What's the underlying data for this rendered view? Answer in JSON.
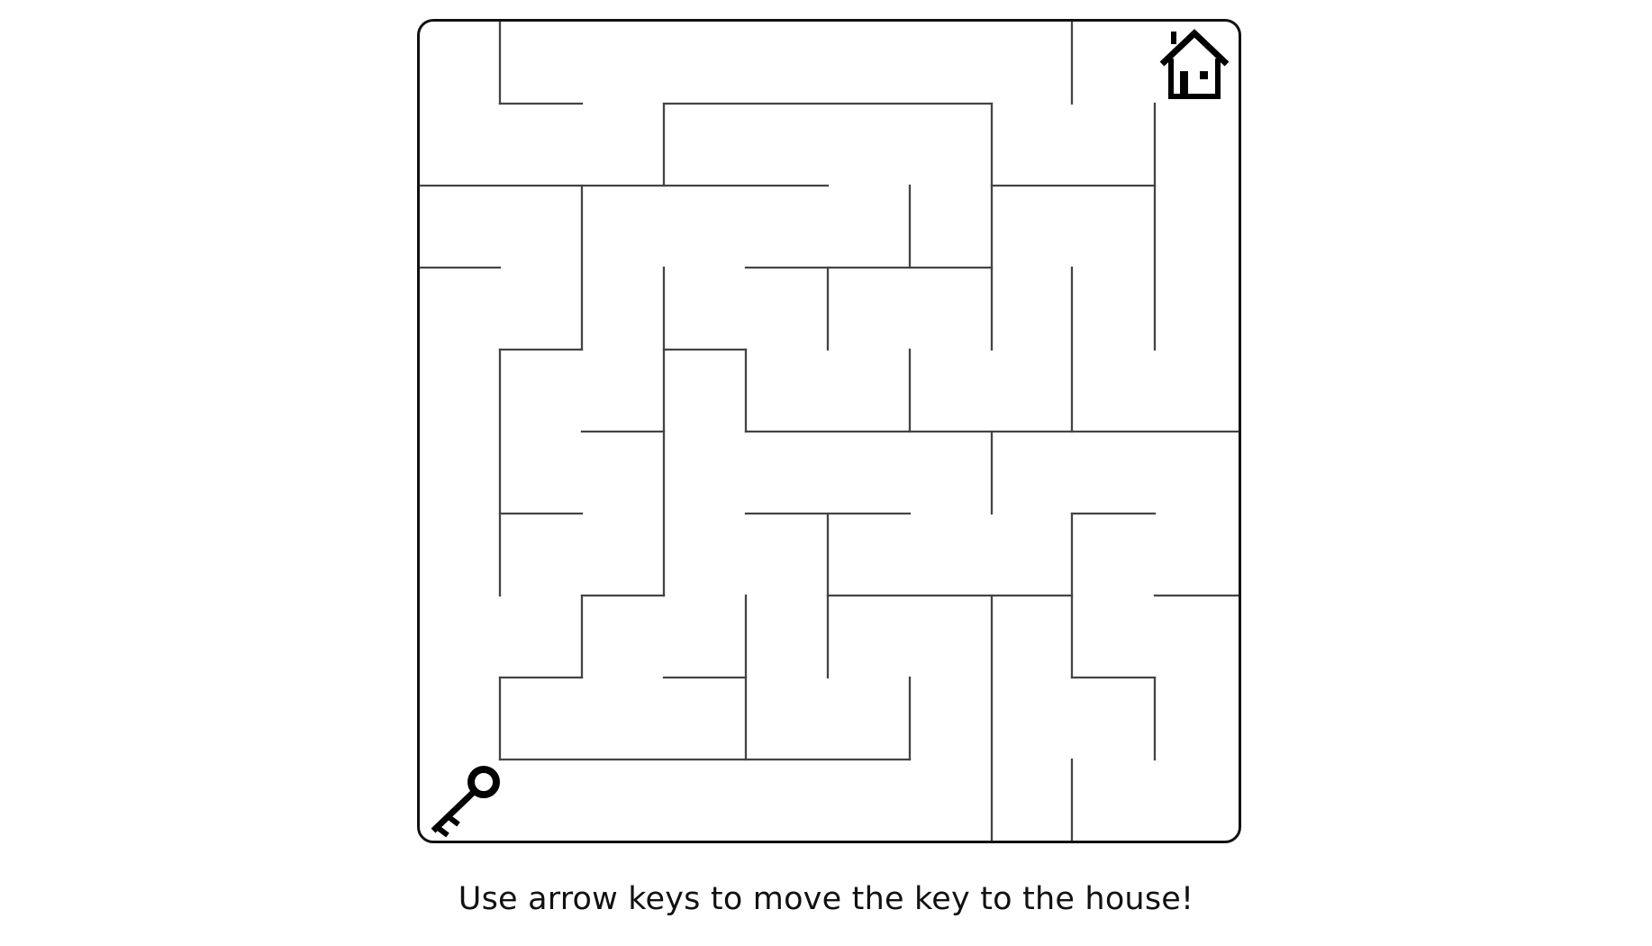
{
  "game": {
    "title": "Maze",
    "player_icon": "key-icon",
    "goal_icon": "house-icon",
    "grid": {
      "rows": 10,
      "cols": 10
    },
    "player_cell": {
      "row": 9,
      "col": 0
    },
    "goal_cell": {
      "row": 0,
      "col": 9
    },
    "instructions": "Use arrow keys to move the key to the house!",
    "colors": {
      "wall": "#444444",
      "border": "#111111",
      "background": "#ffffff",
      "icon": "#000000"
    }
  }
}
